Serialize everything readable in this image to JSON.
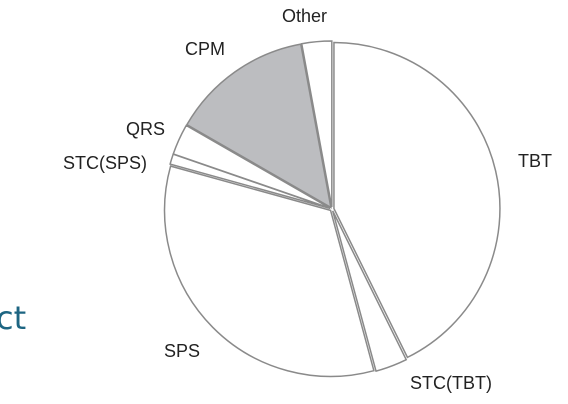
{
  "side_text": "ct",
  "chart_data": {
    "type": "pie",
    "categories": [
      "TBT",
      "STC(TBT)",
      "SPS",
      "STC(SPS)",
      "QRS",
      "CPM",
      "Other"
    ],
    "values": [
      42.7,
      3.1,
      33.5,
      1.0,
      3.0,
      13.8,
      2.9
    ],
    "colors": [
      "#ffffff",
      "#ffffff",
      "#ffffff",
      "#ffffff",
      "#ffffff",
      "#bcbdc0",
      "#ffffff"
    ],
    "stroke": "#8a8a8a"
  }
}
